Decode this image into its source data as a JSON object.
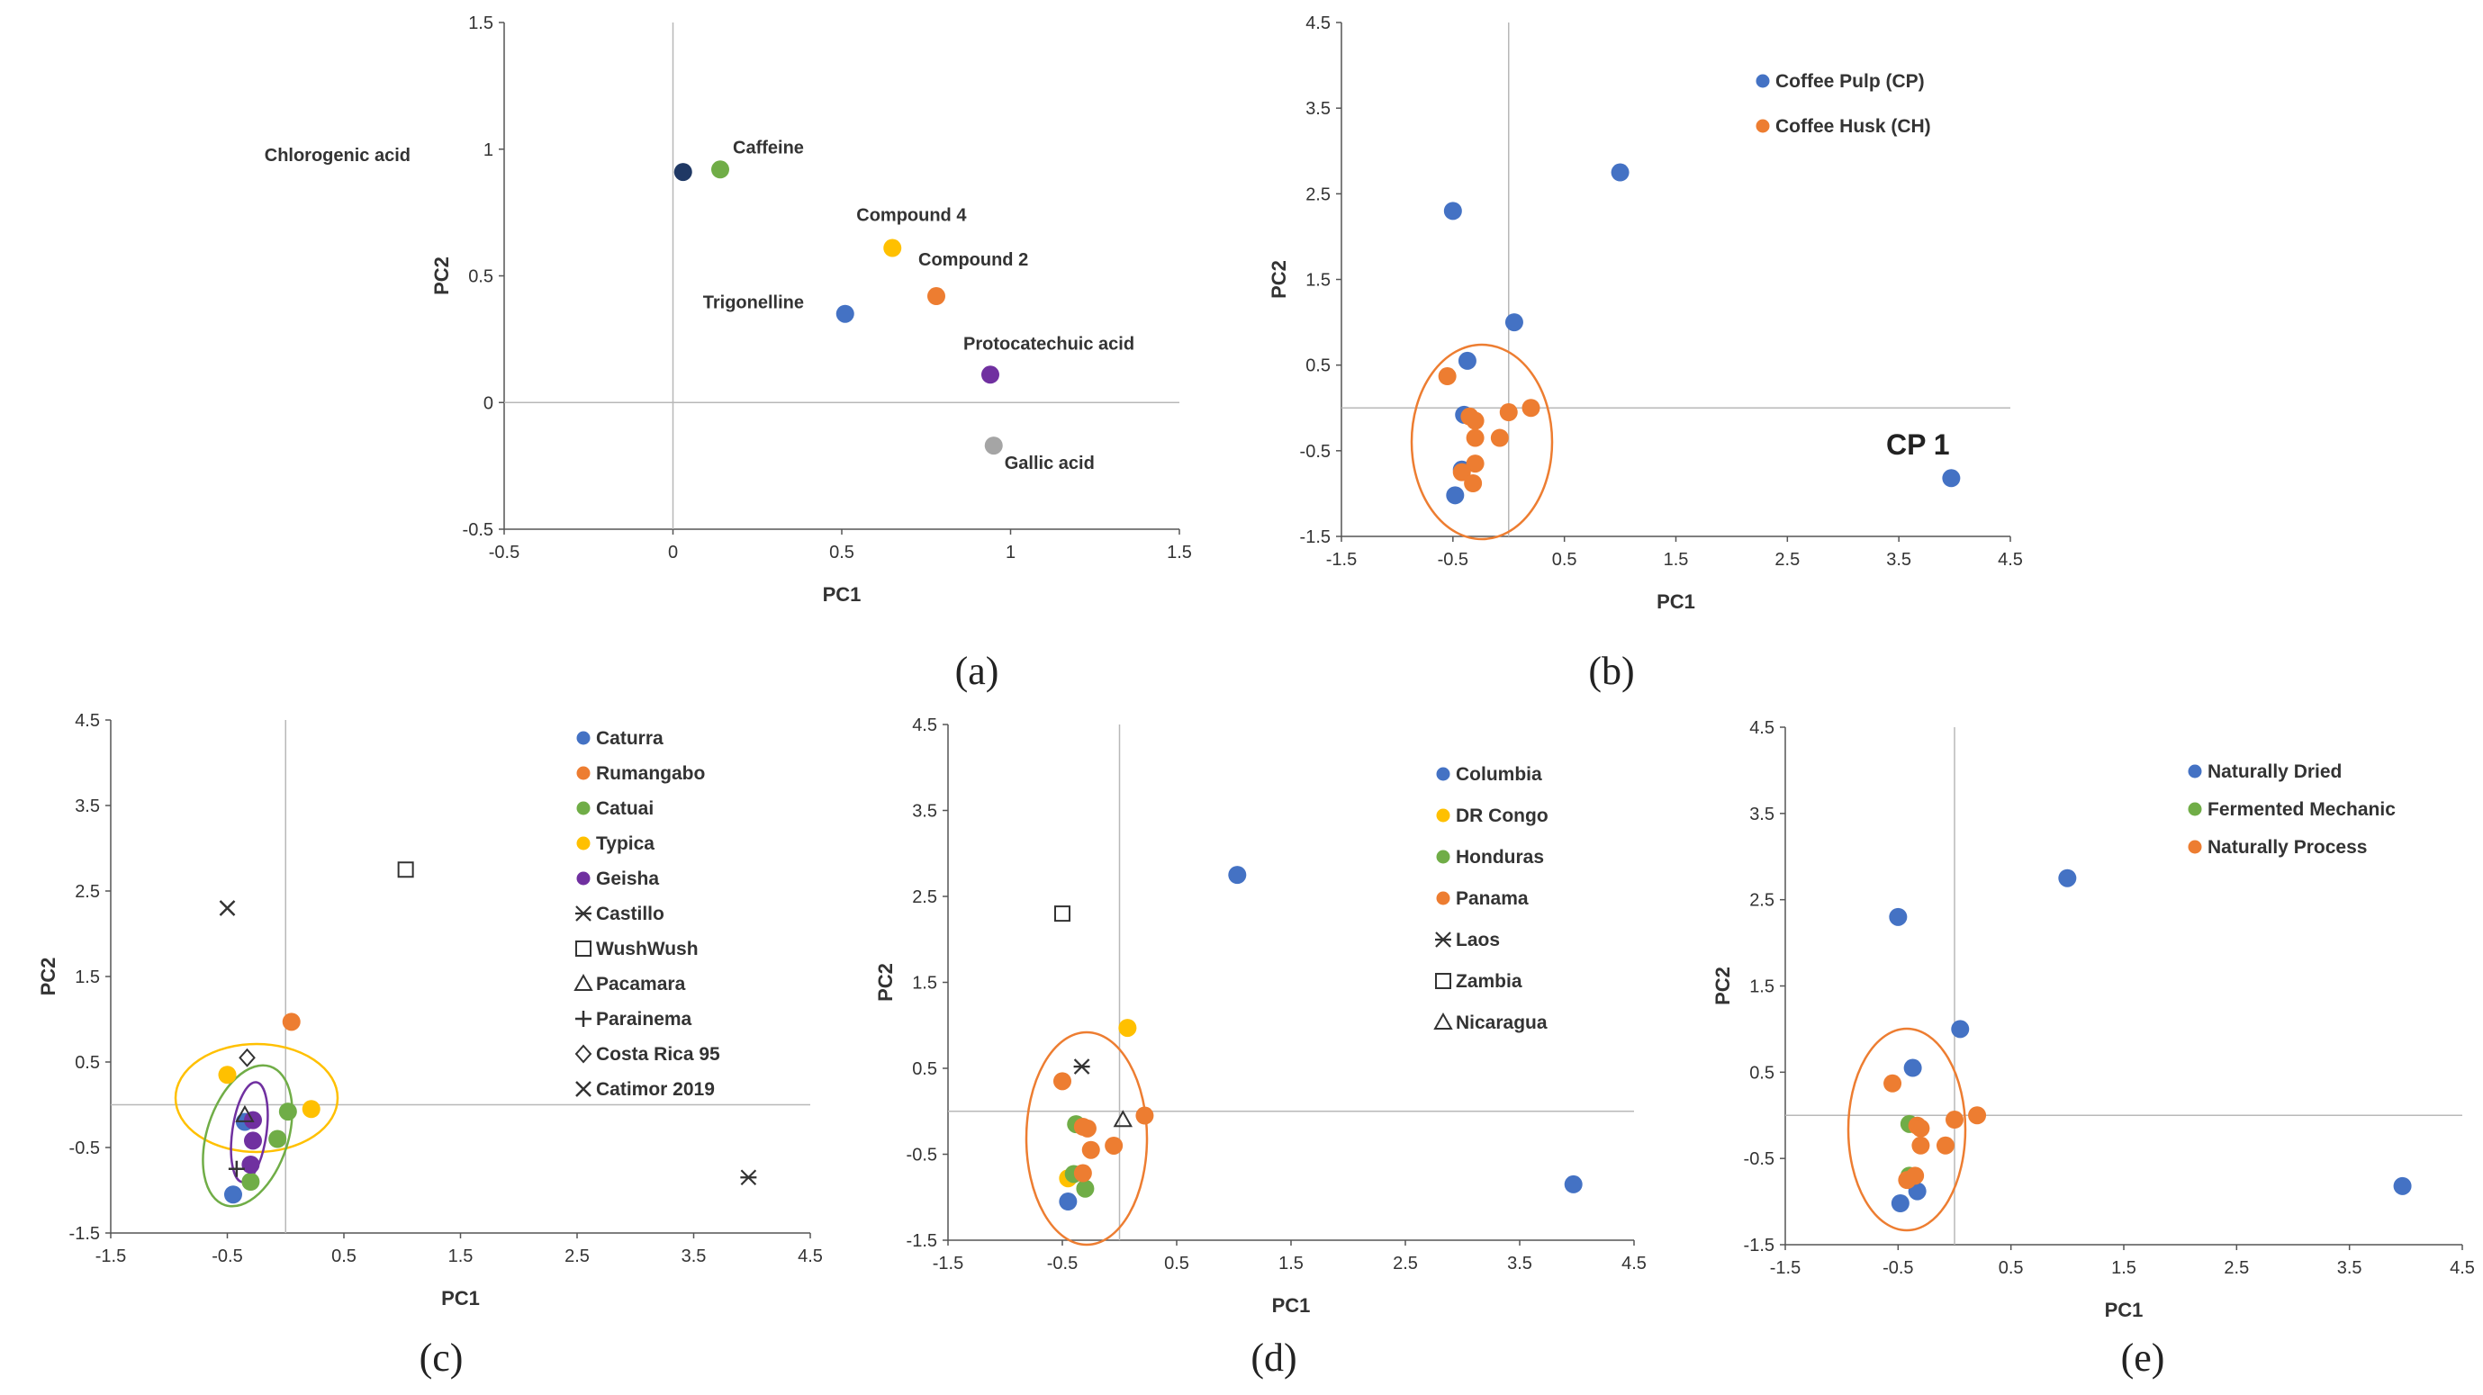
{
  "chart_data": [
    {
      "id": "a",
      "type": "scatter",
      "panel_label": "(a)",
      "xlabel": "PC1",
      "ylabel": "PC2",
      "xlim": [
        -0.5,
        1.5
      ],
      "ylim": [
        -0.5,
        1.5
      ],
      "xticks": [
        -0.5,
        0,
        0.5,
        1,
        1.5
      ],
      "xtick_labels": [
        "-0.5",
        "0",
        "0.5",
        "1",
        "1.5"
      ],
      "yticks": [
        -0.5,
        0,
        0.5,
        1,
        1.5
      ],
      "ytick_labels": [
        "-0.5",
        "0",
        "0.5",
        "1",
        "1.5"
      ],
      "points": [
        {
          "label": "Chlorogenic acid",
          "x": 0.03,
          "y": 0.91,
          "color": "#1f3864"
        },
        {
          "label": "Caffeine",
          "x": 0.14,
          "y": 0.92,
          "color": "#70ad47"
        },
        {
          "label": "Compound 4",
          "x": 0.65,
          "y": 0.61,
          "color": "#ffc000"
        },
        {
          "label": "Compound 2",
          "x": 0.78,
          "y": 0.42,
          "color": "#ed7d31"
        },
        {
          "label": "Trigonelline",
          "x": 0.51,
          "y": 0.35,
          "color": "#4472c4"
        },
        {
          "label": "Protocatechuic acid",
          "x": 0.94,
          "y": 0.11,
          "color": "#7030a0"
        },
        {
          "label": "Gallic acid",
          "x": 0.95,
          "y": -0.17,
          "color": "#a5a5a5"
        }
      ]
    },
    {
      "id": "b",
      "type": "scatter",
      "panel_label": "(b)",
      "xlabel": "PC1",
      "ylabel": "PC2",
      "xlim": [
        -1.5,
        4.5
      ],
      "ylim": [
        -1.5,
        4.5
      ],
      "xticks": [
        -1.5,
        -0.5,
        0.5,
        1.5,
        2.5,
        3.5,
        4.5
      ],
      "xtick_labels": [
        "-1.5",
        "-0.5",
        "0.5",
        "1.5",
        "2.5",
        "3.5",
        "4.5"
      ],
      "yticks": [
        -1.5,
        -0.5,
        0.5,
        1.5,
        2.5,
        3.5,
        4.5
      ],
      "ytick_labels": [
        "-1.5",
        "-0.5",
        "0.5",
        "1.5",
        "2.5",
        "3.5",
        "4.5"
      ],
      "legend_position": "top-right",
      "annotation": "CP 1",
      "series": [
        {
          "name": "Coffee Pulp (CP)",
          "color": "#4472c4",
          "points": [
            [
              -0.5,
              2.3
            ],
            [
              1.0,
              2.75
            ],
            [
              0.05,
              1.0
            ],
            [
              -0.37,
              0.55
            ],
            [
              -0.4,
              -0.08
            ],
            [
              -0.42,
              -0.72
            ],
            [
              -0.48,
              -1.02
            ],
            [
              3.97,
              -0.82
            ]
          ]
        },
        {
          "name": "Coffee Husk (CH)",
          "color": "#ed7d31",
          "points": [
            [
              -0.55,
              0.37
            ],
            [
              -0.35,
              -0.1
            ],
            [
              -0.3,
              -0.15
            ],
            [
              0.0,
              -0.05
            ],
            [
              0.2,
              0.0
            ],
            [
              -0.08,
              -0.35
            ],
            [
              -0.3,
              -0.35
            ],
            [
              -0.3,
              -0.65
            ],
            [
              -0.42,
              -0.75
            ],
            [
              -0.32,
              -0.88
            ]
          ]
        }
      ]
    },
    {
      "id": "c",
      "type": "scatter",
      "panel_label": "(c)",
      "xlabel": "PC1",
      "ylabel": "PC2",
      "xlim": [
        -1.5,
        4.5
      ],
      "ylim": [
        -1.5,
        4.5
      ],
      "xticks": [
        -1.5,
        -0.5,
        0.5,
        1.5,
        2.5,
        3.5,
        4.5
      ],
      "xtick_labels": [
        "-1.5",
        "-0.5",
        "0.5",
        "1.5",
        "2.5",
        "3.5",
        "4.5"
      ],
      "yticks": [
        -1.5,
        -0.5,
        0.5,
        1.5,
        2.5,
        3.5,
        4.5
      ],
      "ytick_labels": [
        "-1.5",
        "-0.5",
        "0.5",
        "1.5",
        "2.5",
        "3.5",
        "4.5"
      ],
      "legend_position": "top-right",
      "series": [
        {
          "name": "Caturra",
          "marker": "dot",
          "color": "#4472c4",
          "points": [
            [
              -0.45,
              -1.05
            ],
            [
              -0.35,
              -0.2
            ]
          ]
        },
        {
          "name": "Rumangabo",
          "marker": "dot",
          "color": "#ed7d31",
          "points": [
            [
              0.05,
              0.97
            ]
          ]
        },
        {
          "name": "Catuai",
          "marker": "dot",
          "color": "#70ad47",
          "points": [
            [
              0.02,
              -0.08
            ],
            [
              -0.07,
              -0.4
            ],
            [
              -0.3,
              -0.9
            ]
          ]
        },
        {
          "name": "Typica",
          "marker": "dot",
          "color": "#ffc000",
          "points": [
            [
              -0.5,
              0.35
            ],
            [
              0.22,
              -0.05
            ]
          ]
        },
        {
          "name": "Geisha",
          "marker": "dot",
          "color": "#7030a0",
          "points": [
            [
              -0.28,
              -0.18
            ],
            [
              -0.28,
              -0.42
            ],
            [
              -0.3,
              -0.7
            ]
          ]
        },
        {
          "name": "Castillo",
          "marker": "asterisk",
          "color": "#333333",
          "points": [
            [
              3.97,
              -0.85
            ]
          ]
        },
        {
          "name": "WushWush",
          "marker": "square",
          "color": "#333333",
          "points": [
            [
              1.03,
              2.75
            ]
          ]
        },
        {
          "name": "Pacamara",
          "marker": "triangle",
          "color": "#333333",
          "points": [
            [
              -0.35,
              -0.12
            ]
          ]
        },
        {
          "name": "Parainema",
          "marker": "plus",
          "color": "#333333",
          "points": [
            [
              -0.42,
              -0.75
            ]
          ]
        },
        {
          "name": "Costa Rica 95",
          "marker": "diamond",
          "color": "#333333",
          "points": [
            [
              -0.33,
              0.55
            ]
          ]
        },
        {
          "name": "Catimor 2019",
          "marker": "cross",
          "color": "#333333",
          "points": [
            [
              -0.5,
              2.3
            ]
          ]
        }
      ]
    },
    {
      "id": "d",
      "type": "scatter",
      "panel_label": "(d)",
      "xlabel": "PC1",
      "ylabel": "PC2",
      "xlim": [
        -1.5,
        4.5
      ],
      "ylim": [
        -1.5,
        4.5
      ],
      "xticks": [
        -1.5,
        -0.5,
        0.5,
        1.5,
        2.5,
        3.5,
        4.5
      ],
      "xtick_labels": [
        "-1.5",
        "-0.5",
        "0.5",
        "1.5",
        "2.5",
        "3.5",
        "4.5"
      ],
      "yticks": [
        -1.5,
        -0.5,
        0.5,
        1.5,
        2.5,
        3.5,
        4.5
      ],
      "ytick_labels": [
        "-1.5",
        "-0.5",
        "0.5",
        "1.5",
        "2.5",
        "3.5",
        "4.5"
      ],
      "legend_position": "top-right",
      "series": [
        {
          "name": "Columbia",
          "marker": "dot",
          "color": "#4472c4",
          "points": [
            [
              1.03,
              2.75
            ],
            [
              3.97,
              -0.85
            ],
            [
              -0.45,
              -1.05
            ]
          ]
        },
        {
          "name": "DR Congo",
          "marker": "dot",
          "color": "#ffc000",
          "points": [
            [
              0.07,
              0.97
            ],
            [
              -0.45,
              -0.78
            ]
          ]
        },
        {
          "name": "Honduras",
          "marker": "dot",
          "color": "#70ad47",
          "points": [
            [
              -0.38,
              -0.15
            ],
            [
              -0.4,
              -0.73
            ],
            [
              -0.3,
              -0.9
            ]
          ]
        },
        {
          "name": "Panama",
          "marker": "dot",
          "color": "#ed7d31",
          "points": [
            [
              -0.5,
              0.35
            ],
            [
              -0.32,
              -0.18
            ],
            [
              -0.28,
              -0.2
            ],
            [
              -0.05,
              -0.4
            ],
            [
              0.22,
              -0.05
            ],
            [
              -0.25,
              -0.45
            ],
            [
              -0.32,
              -0.72
            ]
          ]
        },
        {
          "name": "Laos",
          "marker": "asterisk",
          "color": "#333333",
          "points": [
            [
              -0.33,
              0.52
            ]
          ]
        },
        {
          "name": "Zambia",
          "marker": "square",
          "color": "#333333",
          "points": [
            [
              -0.5,
              2.3
            ]
          ]
        },
        {
          "name": "Nicaragua",
          "marker": "triangle",
          "color": "#333333",
          "points": [
            [
              0.03,
              -0.1
            ]
          ]
        }
      ]
    },
    {
      "id": "e",
      "type": "scatter",
      "panel_label": "(e)",
      "xlabel": "PC1",
      "ylabel": "PC2",
      "xlim": [
        -1.5,
        4.5
      ],
      "ylim": [
        -1.5,
        4.5
      ],
      "xticks": [
        -1.5,
        -0.5,
        0.5,
        1.5,
        2.5,
        3.5,
        4.5
      ],
      "xtick_labels": [
        "-1.5",
        "-0.5",
        "0.5",
        "1.5",
        "2.5",
        "3.5",
        "4.5"
      ],
      "yticks": [
        -1.5,
        -0.5,
        0.5,
        1.5,
        2.5,
        3.5,
        4.5
      ],
      "ytick_labels": [
        "-1.5",
        "-0.5",
        "0.5",
        "1.5",
        "2.5",
        "3.5",
        "4.5"
      ],
      "legend_position": "top-right",
      "series": [
        {
          "name": "Naturally Dried",
          "color": "#4472c4",
          "points": [
            [
              -0.5,
              2.3
            ],
            [
              1.0,
              2.75
            ],
            [
              0.05,
              1.0
            ],
            [
              -0.37,
              0.55
            ],
            [
              -0.48,
              -1.02
            ],
            [
              -0.33,
              -0.88
            ],
            [
              3.97,
              -0.82
            ]
          ]
        },
        {
          "name": "Fermented Mechanic",
          "color": "#70ad47",
          "points": [
            [
              -0.4,
              -0.1
            ],
            [
              -0.4,
              -0.7
            ]
          ]
        },
        {
          "name": "Naturally Process",
          "color": "#ed7d31",
          "points": [
            [
              -0.55,
              0.37
            ],
            [
              -0.33,
              -0.12
            ],
            [
              -0.3,
              -0.15
            ],
            [
              0.0,
              -0.05
            ],
            [
              0.2,
              0.0
            ],
            [
              -0.08,
              -0.35
            ],
            [
              -0.3,
              -0.35
            ],
            [
              -0.42,
              -0.75
            ],
            [
              -0.35,
              -0.7
            ]
          ]
        }
      ]
    }
  ]
}
